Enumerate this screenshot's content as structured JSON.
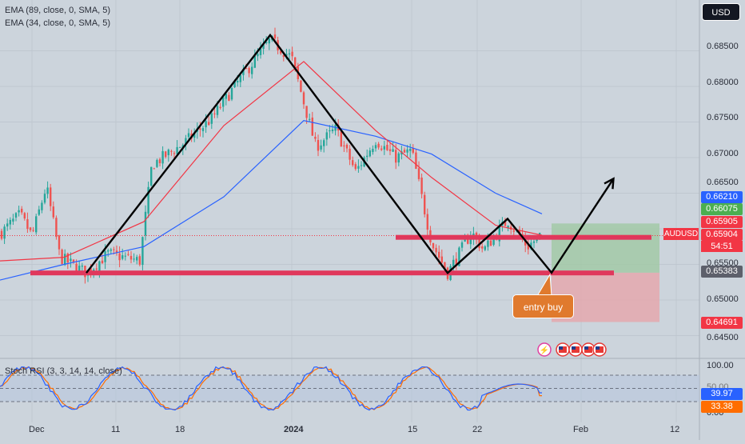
{
  "legend": {
    "ema_slow": "EMA (89, close, 0, SMA, 5)",
    "ema_fast": "EMA (34, close, 0, SMA, 5)",
    "stoch": "Stoch RSI (3, 3, 14, 14, close)"
  },
  "currency_button": "USD",
  "symbol": "AUDUSD",
  "countdown": "54:51",
  "callout": "entry buy",
  "colors": {
    "background": "#ccd4dc",
    "up": "#26a69a",
    "down": "#ef5350",
    "ema_slow": "#2962ff",
    "ema_fast": "#f23645",
    "zone": "#e0385c",
    "profit": "#9ec8a0",
    "loss": "#e8a3a8",
    "callout": "#e07a2e",
    "pattern": "#000000"
  },
  "price_axis_labels": [
    "0.68500",
    "0.68000",
    "0.67500",
    "0.67000",
    "0.66500",
    "0.65500",
    "0.65000",
    "0.64500"
  ],
  "price_tags": [
    {
      "value": "0.66210",
      "color": "#2962ff"
    },
    {
      "value": "0.66075",
      "color": "#4caf50"
    },
    {
      "value": "0.65905",
      "color": "#f23645"
    },
    {
      "value": "0.65904",
      "color": "#f23645"
    },
    {
      "value": "0.65383",
      "color": "#5d606b"
    },
    {
      "value": "0.64691",
      "color": "#f23645"
    }
  ],
  "date_labels": [
    "Dec",
    "11",
    "18",
    "2024",
    "15",
    "22",
    "Feb",
    "12"
  ],
  "rsi_axis": {
    "top": "100.00",
    "mid": "50.00",
    "bottom": "0.00",
    "k": "39.97",
    "d": "33.38"
  },
  "chart_data": {
    "type": "candlestick",
    "price_range": [
      0.643,
      0.6885
    ],
    "approx_daily_closes": [
      {
        "date": "Dec",
        "close": 0.6585
      },
      {
        "date": "11",
        "close": 0.6565
      },
      {
        "date": "18",
        "close": 0.6735
      },
      {
        "date": "2024",
        "close": 0.6835
      },
      {
        "date": "15",
        "close": 0.6695
      },
      {
        "date": "22",
        "close": 0.6568
      },
      {
        "date": "now",
        "close": 0.65904
      }
    ],
    "pattern_points": [
      {
        "label": "low1",
        "price": 0.6538
      },
      {
        "label": "peak",
        "price": 0.6872
      },
      {
        "label": "low2",
        "price": 0.6538
      },
      {
        "label": "shoulder",
        "price": 0.6614
      },
      {
        "label": "entry",
        "price": 0.65383
      },
      {
        "label": "target",
        "price": 0.6644
      }
    ],
    "zones": [
      {
        "name": "support",
        "price": 0.6538
      },
      {
        "name": "resistance",
        "price": 0.6588
      }
    ],
    "position": {
      "entry": 0.65383,
      "take_profit": 0.66075,
      "stop_loss": 0.64691
    },
    "ema89": [
      0.6528,
      0.655,
      0.6575,
      0.6645,
      0.6752,
      0.673,
      0.6705,
      0.665,
      0.6621
    ],
    "ema34": [
      0.6555,
      0.656,
      0.661,
      0.6745,
      0.6835,
      0.6738,
      0.6672,
      0.6605,
      0.6591
    ],
    "stoch_rsi": {
      "k_last": 39.97,
      "d_last": 33.38,
      "range": [
        0,
        100
      ]
    }
  }
}
